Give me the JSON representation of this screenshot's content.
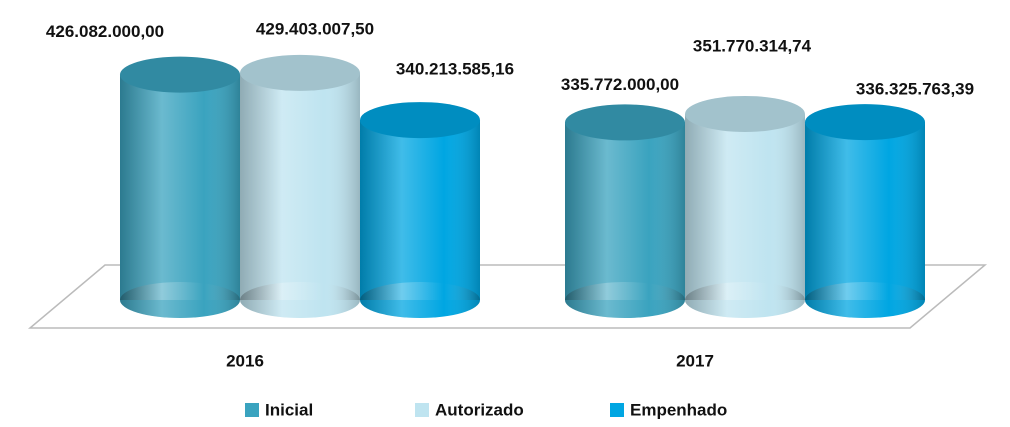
{
  "chart_data": {
    "type": "bar",
    "categories": [
      "2016",
      "2017"
    ],
    "series": [
      {
        "name": "Inicial",
        "color": "#3aa3bf",
        "values": [
          426082000,
          335772000
        ],
        "value_labels": [
          "426.082.000,00",
          "335.772.000,00"
        ]
      },
      {
        "name": "Autorizado",
        "color": "#bfe4f0",
        "values": [
          429403007.5,
          351770314.74
        ],
        "value_labels": [
          "429.403.007,50",
          "351.770.314,74"
        ]
      },
      {
        "name": "Empenhado",
        "color": "#00a6e2",
        "values": [
          340213585.16,
          336325763.39
        ],
        "value_labels": [
          "340.213.585,16",
          "336.325.763,39"
        ]
      }
    ],
    "ylim": [
      0,
      450000000
    ],
    "legend": "bottom"
  }
}
